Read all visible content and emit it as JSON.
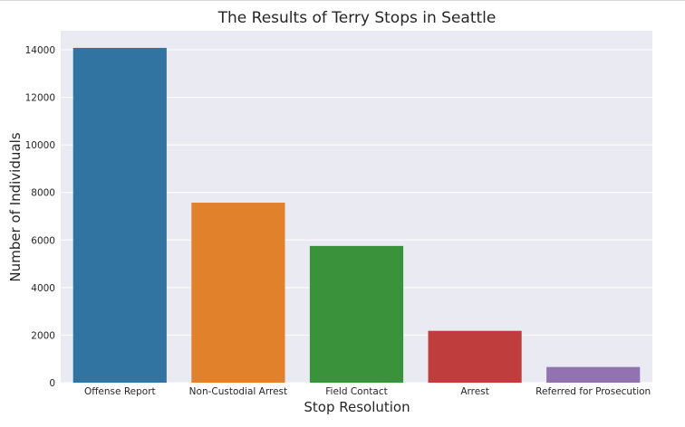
{
  "chart_data": {
    "type": "bar",
    "title": "The Results of Terry Stops in Seattle",
    "xlabel": "Stop Resolution",
    "ylabel": "Number of Individuals",
    "categories": [
      "Offense Report",
      "Non-Custodial Arrest",
      "Field Contact",
      "Arrest",
      "Referred for Prosecution"
    ],
    "values": [
      14080,
      7570,
      5750,
      2180,
      660
    ],
    "colors": [
      "#3274a1",
      "#e1812c",
      "#3a923a",
      "#c03d3e",
      "#9372b2"
    ],
    "ylim": [
      0,
      14800
    ],
    "yticks": [
      0,
      2000,
      4000,
      6000,
      8000,
      10000,
      12000,
      14000
    ],
    "ytick_labels": [
      "0",
      "2000",
      "4000",
      "6000",
      "8000",
      "10000",
      "12000",
      "14000"
    ],
    "grid": true,
    "background": "#eaeaf2"
  }
}
